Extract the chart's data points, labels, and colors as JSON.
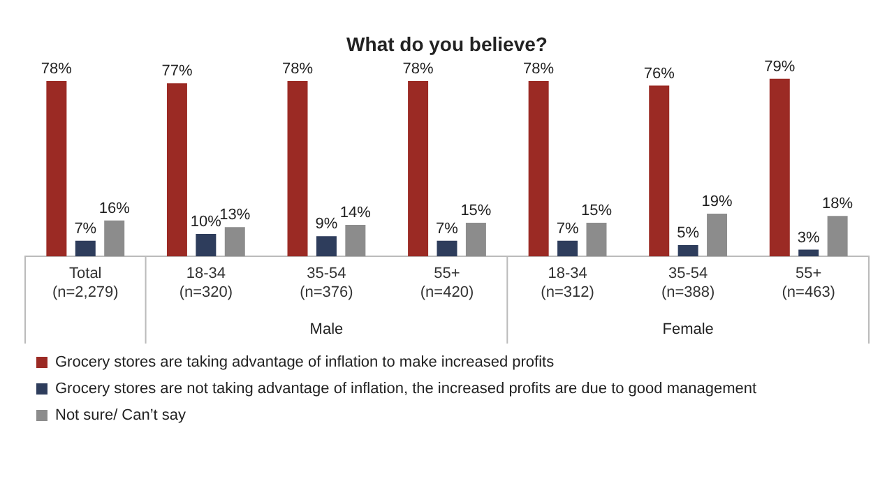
{
  "chart_data": {
    "type": "bar",
    "title": "What do you believe?",
    "categories": [
      "Total (n=2,279)",
      "18-34 (n=320)",
      "35-54 (n=376)",
      "55+ (n=420)",
      "18-34 (n=312)",
      "35-54 (n=388)",
      "55+ (n=463)"
    ],
    "series": [
      {
        "name": "Grocery stores are taking advantage of inflation to make increased profits",
        "color": "#9b2a24",
        "values": [
          78,
          77,
          78,
          78,
          78,
          76,
          79
        ],
        "value_labels": [
          "78%",
          "77%",
          "78%",
          "78%",
          "78%",
          "76%",
          "79%"
        ]
      },
      {
        "name": "Grocery stores are not taking advantage of inflation, the increased profits are due to good management",
        "color": "#2e3d5c",
        "values": [
          7,
          10,
          9,
          7,
          7,
          5,
          3
        ],
        "value_labels": [
          "7%",
          "10%",
          "9%",
          "7%",
          "7%",
          "5%",
          "3%"
        ]
      },
      {
        "name": "Not sure/ Can’t say",
        "color": "#8c8c8c",
        "values": [
          16,
          13,
          14,
          15,
          15,
          19,
          18
        ],
        "value_labels": [
          "16%",
          "13%",
          "14%",
          "15%",
          "15%",
          "19%",
          "18%"
        ]
      }
    ],
    "annotations": [
      "Male",
      "Female"
    ],
    "legend": "bottom",
    "grid": false
  }
}
